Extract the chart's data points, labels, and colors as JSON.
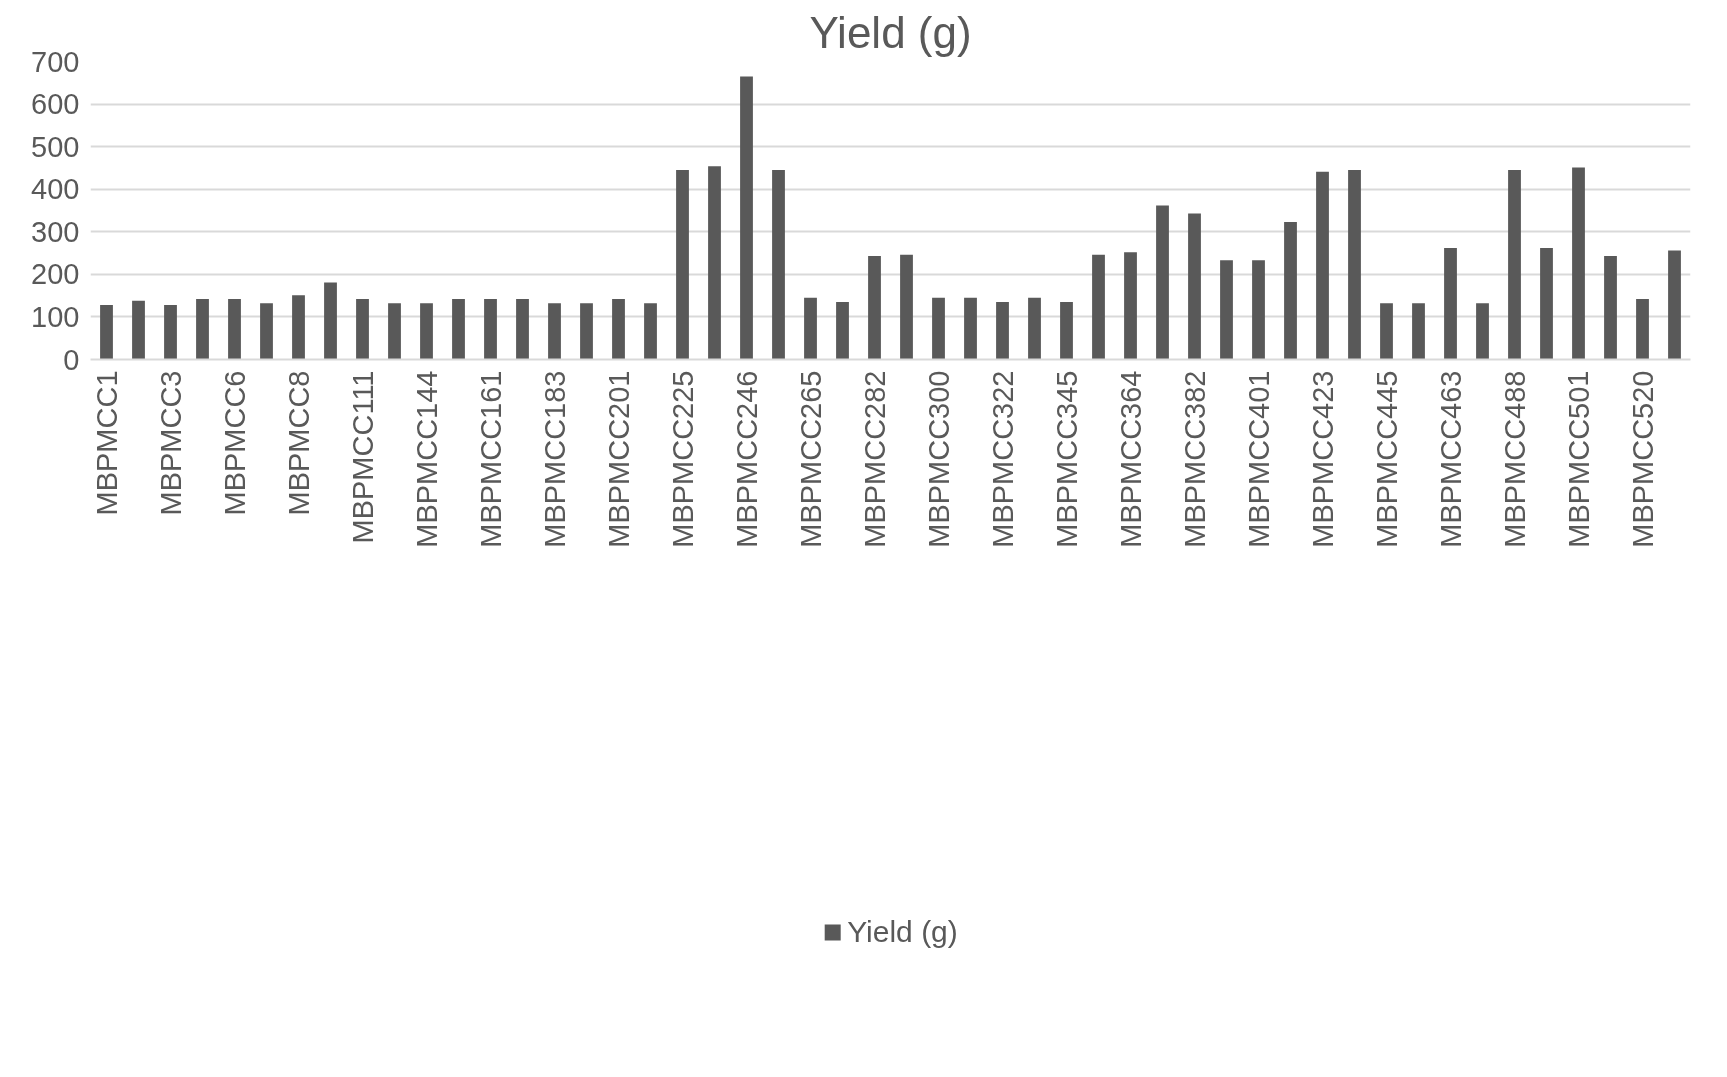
{
  "chart_data": {
    "type": "bar",
    "title": "Yield (g)",
    "categories": [
      "MBPMCC1",
      null,
      "MBPMCC3",
      null,
      "MBPMCC6",
      null,
      "MBPMCC8",
      null,
      "MBPMCC111",
      null,
      "MBPMCC144",
      null,
      "MBPMCC161",
      null,
      "MBPMCC183",
      null,
      "MBPMCC201",
      null,
      "MBPMCC225",
      null,
      "MBPMCC246",
      null,
      "MBPMCC265",
      null,
      "MBPMCC282",
      null,
      "MBPMCC300",
      null,
      "MBPMCC322",
      null,
      "MBPMCC345",
      null,
      "MBPMCC364",
      null,
      "MBPMCC382",
      null,
      "MBPMCC401",
      null,
      "MBPMCC423",
      null,
      "MBPMCC445",
      null,
      "MBPMCC463",
      null,
      "MBPMCC488",
      null,
      "MBPMCC501",
      null,
      "MBPMCC520",
      null
    ],
    "series": [
      {
        "name": "Yield (g)",
        "color": "#595959",
        "values": [
          128,
          138,
          128,
          142,
          142,
          132,
          151,
          181,
          142,
          132,
          132,
          142,
          142,
          142,
          132,
          132,
          142,
          132,
          445,
          454,
          665,
          445,
          145,
          135,
          243,
          246,
          145,
          145,
          135,
          145,
          135,
          246,
          252,
          362,
          343,
          233,
          233,
          323,
          441,
          445,
          132,
          132,
          262,
          132,
          445,
          262,
          451,
          243,
          142,
          256
        ]
      }
    ],
    "ylim": [
      0,
      700
    ],
    "yticks": [
      0,
      100,
      200,
      300,
      400,
      500,
      600,
      700
    ],
    "grid": "y",
    "legend": "bottom"
  }
}
